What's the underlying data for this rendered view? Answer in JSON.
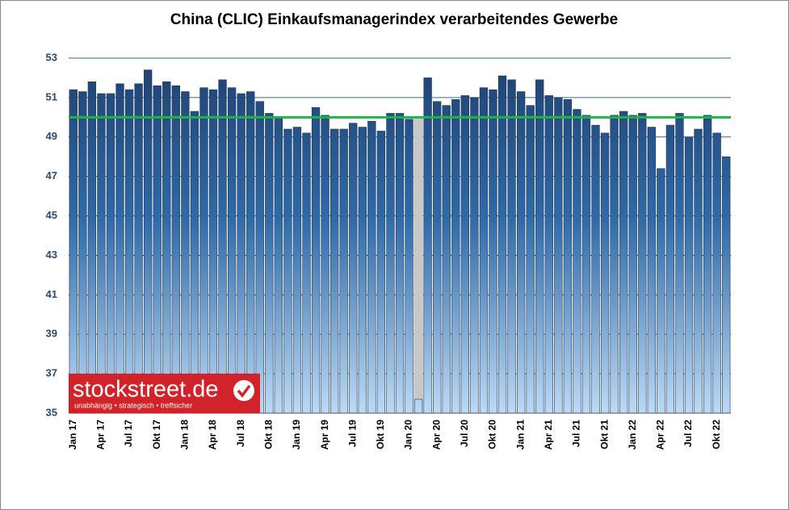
{
  "chart_data": {
    "type": "bar",
    "title": "China (CLIC) Einkaufsmanagerindex verarbeitendes Gewerbe",
    "categories": [
      "Jan 17",
      null,
      null,
      "Apr 17",
      null,
      null,
      "Jul 17",
      null,
      null,
      "Okt 17",
      null,
      null,
      "Jan 18",
      null,
      null,
      "Apr 18",
      null,
      null,
      "Jul 18",
      null,
      null,
      "Okt 18",
      null,
      null,
      "Jan 19",
      null,
      null,
      "Apr 19",
      null,
      null,
      "Jul 19",
      null,
      null,
      "Okt 19",
      null,
      null,
      "Jan 20",
      null,
      null,
      "Apr 20",
      null,
      null,
      "Jul 20",
      null,
      null,
      "Okt 20",
      null,
      null,
      "Jan 21",
      null,
      null,
      "Apr 21",
      null,
      null,
      "Jul 21",
      null,
      null,
      "Okt 21",
      null,
      null,
      "Jan 22",
      null,
      null,
      "Apr 22",
      null,
      null,
      "Jul 22",
      null,
      null,
      "Okt 22",
      null
    ],
    "values": [
      51.4,
      51.3,
      51.8,
      51.2,
      51.2,
      51.7,
      51.4,
      51.7,
      52.4,
      51.6,
      51.8,
      51.6,
      51.3,
      50.3,
      51.5,
      51.4,
      51.9,
      51.5,
      51.2,
      51.3,
      50.8,
      50.2,
      50.0,
      49.4,
      49.5,
      49.2,
      50.5,
      50.1,
      49.4,
      49.4,
      49.7,
      49.5,
      49.8,
      49.3,
      50.2,
      50.2,
      49.9,
      35.7,
      52.0,
      50.8,
      50.6,
      50.9,
      51.1,
      51.0,
      51.5,
      51.4,
      52.1,
      51.9,
      51.3,
      50.6,
      51.9,
      51.1,
      51.0,
      50.9,
      50.4,
      50.1,
      49.6,
      49.2,
      50.1,
      50.3,
      50.1,
      50.2,
      49.5,
      47.4,
      49.6,
      50.2,
      49.0,
      49.4,
      50.1,
      49.2,
      48.0
    ],
    "color": "#2a5b92",
    "highlight_index": 37,
    "highlight_color": "#c8c8c8",
    "reference_line": 50,
    "reference_color": "#22b14c",
    "ylim": [
      35,
      53
    ],
    "yticks": [
      35,
      37,
      39,
      41,
      43,
      45,
      47,
      49,
      51,
      53
    ],
    "grid": true
  },
  "logo": {
    "name": "stockstreet.de",
    "slogan": "unabhängig • strategisch • treffsicher"
  }
}
